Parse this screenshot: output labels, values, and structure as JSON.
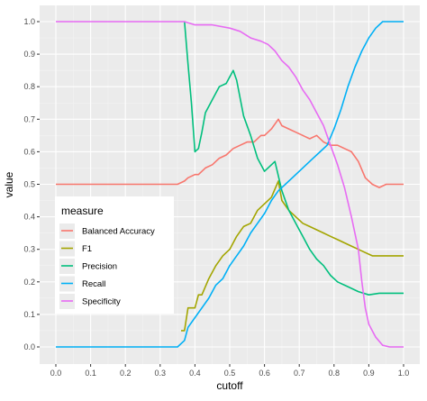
{
  "chart_data": {
    "type": "line",
    "title": "",
    "xlabel": "cutoff",
    "ylabel": "value",
    "xlim": [
      0.0,
      1.0
    ],
    "ylim": [
      0.0,
      1.0
    ],
    "x_ticks": [
      "0.0",
      "0.1",
      "0.2",
      "0.3",
      "0.4",
      "0.5",
      "0.6",
      "0.7",
      "0.8",
      "0.9",
      "1.0"
    ],
    "y_ticks": [
      "0.0",
      "0.1",
      "0.2",
      "0.3",
      "0.4",
      "0.5",
      "0.6",
      "0.7",
      "0.8",
      "0.9",
      "1.0"
    ],
    "grid": true,
    "legend": {
      "title": "measure",
      "placement": "inside-bottom-left"
    },
    "series": [
      {
        "name": "Balanced Accuracy",
        "color": "#F8766D",
        "points": [
          [
            0.0,
            0.5
          ],
          [
            0.35,
            0.5
          ],
          [
            0.37,
            0.51
          ],
          [
            0.38,
            0.52
          ],
          [
            0.4,
            0.53
          ],
          [
            0.41,
            0.53
          ],
          [
            0.43,
            0.55
          ],
          [
            0.45,
            0.56
          ],
          [
            0.47,
            0.58
          ],
          [
            0.49,
            0.59
          ],
          [
            0.51,
            0.61
          ],
          [
            0.53,
            0.62
          ],
          [
            0.55,
            0.63
          ],
          [
            0.57,
            0.63
          ],
          [
            0.59,
            0.65
          ],
          [
            0.6,
            0.65
          ],
          [
            0.62,
            0.67
          ],
          [
            0.64,
            0.7
          ],
          [
            0.65,
            0.68
          ],
          [
            0.67,
            0.67
          ],
          [
            0.69,
            0.66
          ],
          [
            0.71,
            0.65
          ],
          [
            0.73,
            0.64
          ],
          [
            0.75,
            0.65
          ],
          [
            0.77,
            0.63
          ],
          [
            0.79,
            0.62
          ],
          [
            0.81,
            0.62
          ],
          [
            0.83,
            0.61
          ],
          [
            0.85,
            0.6
          ],
          [
            0.87,
            0.57
          ],
          [
            0.89,
            0.52
          ],
          [
            0.91,
            0.5
          ],
          [
            0.93,
            0.49
          ],
          [
            0.95,
            0.5
          ],
          [
            1.0,
            0.5
          ]
        ]
      },
      {
        "name": "F1",
        "color": "#A3A500",
        "points": [
          [
            0.36,
            0.05
          ],
          [
            0.37,
            0.05
          ],
          [
            0.38,
            0.12
          ],
          [
            0.4,
            0.12
          ],
          [
            0.41,
            0.16
          ],
          [
            0.42,
            0.16
          ],
          [
            0.44,
            0.21
          ],
          [
            0.46,
            0.25
          ],
          [
            0.48,
            0.28
          ],
          [
            0.5,
            0.3
          ],
          [
            0.52,
            0.34
          ],
          [
            0.54,
            0.37
          ],
          [
            0.56,
            0.38
          ],
          [
            0.58,
            0.42
          ],
          [
            0.6,
            0.44
          ],
          [
            0.62,
            0.46
          ],
          [
            0.64,
            0.51
          ],
          [
            0.65,
            0.45
          ],
          [
            0.67,
            0.42
          ],
          [
            0.69,
            0.4
          ],
          [
            0.71,
            0.38
          ],
          [
            0.73,
            0.37
          ],
          [
            0.75,
            0.36
          ],
          [
            0.77,
            0.35
          ],
          [
            0.79,
            0.34
          ],
          [
            0.81,
            0.33
          ],
          [
            0.83,
            0.32
          ],
          [
            0.85,
            0.31
          ],
          [
            0.87,
            0.3
          ],
          [
            0.89,
            0.29
          ],
          [
            0.91,
            0.28
          ],
          [
            1.0,
            0.28
          ]
        ]
      },
      {
        "name": "Precision",
        "color": "#00BF7D",
        "points": [
          [
            0.37,
            1.0
          ],
          [
            0.38,
            0.87
          ],
          [
            0.39,
            0.75
          ],
          [
            0.4,
            0.6
          ],
          [
            0.41,
            0.61
          ],
          [
            0.42,
            0.66
          ],
          [
            0.43,
            0.72
          ],
          [
            0.45,
            0.76
          ],
          [
            0.47,
            0.8
          ],
          [
            0.49,
            0.81
          ],
          [
            0.5,
            0.83
          ],
          [
            0.51,
            0.85
          ],
          [
            0.52,
            0.82
          ],
          [
            0.54,
            0.71
          ],
          [
            0.56,
            0.65
          ],
          [
            0.58,
            0.58
          ],
          [
            0.6,
            0.54
          ],
          [
            0.61,
            0.55
          ],
          [
            0.63,
            0.57
          ],
          [
            0.65,
            0.48
          ],
          [
            0.67,
            0.42
          ],
          [
            0.69,
            0.38
          ],
          [
            0.71,
            0.34
          ],
          [
            0.73,
            0.3
          ],
          [
            0.75,
            0.27
          ],
          [
            0.77,
            0.25
          ],
          [
            0.79,
            0.22
          ],
          [
            0.81,
            0.2
          ],
          [
            0.83,
            0.19
          ],
          [
            0.85,
            0.18
          ],
          [
            0.87,
            0.17
          ],
          [
            0.9,
            0.16
          ],
          [
            0.93,
            0.165
          ],
          [
            1.0,
            0.165
          ]
        ]
      },
      {
        "name": "Recall",
        "color": "#00B0F6",
        "points": [
          [
            0.0,
            0.0
          ],
          [
            0.35,
            0.0
          ],
          [
            0.37,
            0.02
          ],
          [
            0.38,
            0.06
          ],
          [
            0.4,
            0.09
          ],
          [
            0.42,
            0.12
          ],
          [
            0.44,
            0.15
          ],
          [
            0.46,
            0.19
          ],
          [
            0.48,
            0.21
          ],
          [
            0.5,
            0.25
          ],
          [
            0.52,
            0.28
          ],
          [
            0.54,
            0.31
          ],
          [
            0.56,
            0.35
          ],
          [
            0.58,
            0.38
          ],
          [
            0.6,
            0.41
          ],
          [
            0.62,
            0.45
          ],
          [
            0.64,
            0.48
          ],
          [
            0.66,
            0.5
          ],
          [
            0.68,
            0.52
          ],
          [
            0.7,
            0.54
          ],
          [
            0.72,
            0.56
          ],
          [
            0.74,
            0.58
          ],
          [
            0.76,
            0.6
          ],
          [
            0.78,
            0.62
          ],
          [
            0.8,
            0.67
          ],
          [
            0.82,
            0.73
          ],
          [
            0.84,
            0.8
          ],
          [
            0.86,
            0.86
          ],
          [
            0.88,
            0.91
          ],
          [
            0.9,
            0.95
          ],
          [
            0.92,
            0.98
          ],
          [
            0.94,
            1.0
          ],
          [
            1.0,
            1.0
          ]
        ]
      },
      {
        "name": "Specificity",
        "color": "#E76BF3",
        "points": [
          [
            0.0,
            1.0
          ],
          [
            0.37,
            1.0
          ],
          [
            0.4,
            0.99
          ],
          [
            0.45,
            0.99
          ],
          [
            0.5,
            0.98
          ],
          [
            0.53,
            0.97
          ],
          [
            0.56,
            0.95
          ],
          [
            0.59,
            0.94
          ],
          [
            0.61,
            0.93
          ],
          [
            0.63,
            0.91
          ],
          [
            0.65,
            0.88
          ],
          [
            0.67,
            0.86
          ],
          [
            0.69,
            0.83
          ],
          [
            0.71,
            0.79
          ],
          [
            0.73,
            0.76
          ],
          [
            0.75,
            0.72
          ],
          [
            0.77,
            0.68
          ],
          [
            0.79,
            0.62
          ],
          [
            0.81,
            0.56
          ],
          [
            0.83,
            0.49
          ],
          [
            0.85,
            0.4
          ],
          [
            0.87,
            0.3
          ],
          [
            0.88,
            0.2
          ],
          [
            0.89,
            0.12
          ],
          [
            0.9,
            0.07
          ],
          [
            0.92,
            0.03
          ],
          [
            0.94,
            0.005
          ],
          [
            0.96,
            0.0
          ],
          [
            1.0,
            0.0
          ]
        ]
      }
    ]
  }
}
